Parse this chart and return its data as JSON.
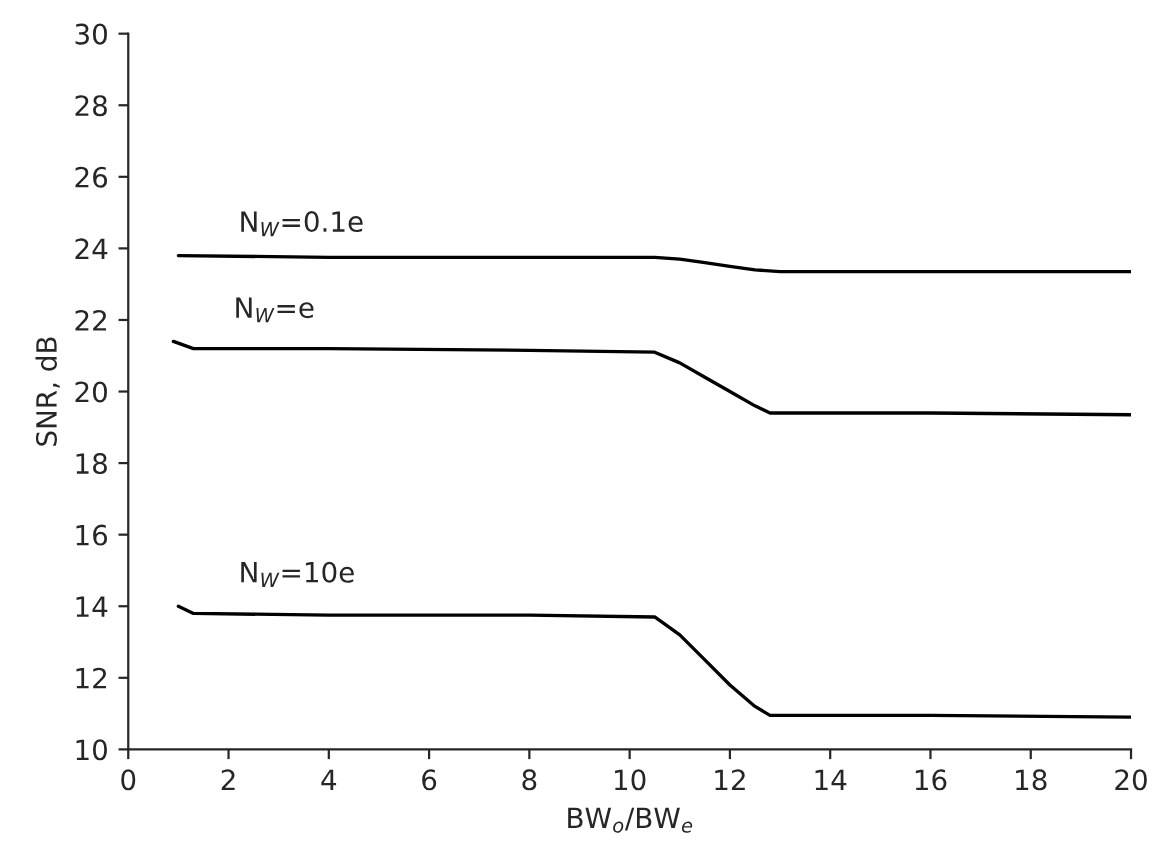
{
  "chart_data": {
    "type": "line",
    "xlabel": "BW$_{o}$/BW$_{e}$",
    "ylabel": "SNR, dB",
    "xlim": [
      0,
      20
    ],
    "xticks": [
      0,
      2,
      4,
      6,
      8,
      10,
      12,
      14,
      16,
      18,
      20
    ],
    "ylim": [
      10,
      30
    ],
    "yticks": [
      10,
      12,
      14,
      16,
      18,
      20,
      22,
      24,
      26,
      28,
      30
    ],
    "grid": false,
    "legend": false,
    "marker": "none",
    "line_style": "solid",
    "series": [
      {
        "name": "N$_{W}$=0.1e",
        "color": "#000000",
        "x": [
          1,
          4,
          8,
          10.5,
          11,
          11.5,
          12,
          12.5,
          13,
          16,
          20
        ],
        "values": [
          23.8,
          23.75,
          23.75,
          23.75,
          23.7,
          23.6,
          23.5,
          23.4,
          23.35,
          23.35,
          23.35
        ]
      },
      {
        "name": "N$_{W}$=e",
        "color": "#000000",
        "x": [
          0.9,
          1.3,
          4,
          8,
          10.5,
          11,
          11.5,
          12,
          12.5,
          12.8,
          16,
          20
        ],
        "values": [
          21.4,
          21.2,
          21.2,
          21.15,
          21.1,
          20.8,
          20.4,
          20.0,
          19.6,
          19.4,
          19.4,
          19.35
        ]
      },
      {
        "name": "N$_{W}$=10e",
        "color": "#000000",
        "x": [
          1,
          1.3,
          4,
          8,
          10.5,
          11,
          11.5,
          12,
          12.5,
          12.8,
          16,
          20
        ],
        "values": [
          14.0,
          13.8,
          13.75,
          13.75,
          13.7,
          13.2,
          12.5,
          11.8,
          11.2,
          10.95,
          10.95,
          10.9
        ]
      }
    ]
  }
}
